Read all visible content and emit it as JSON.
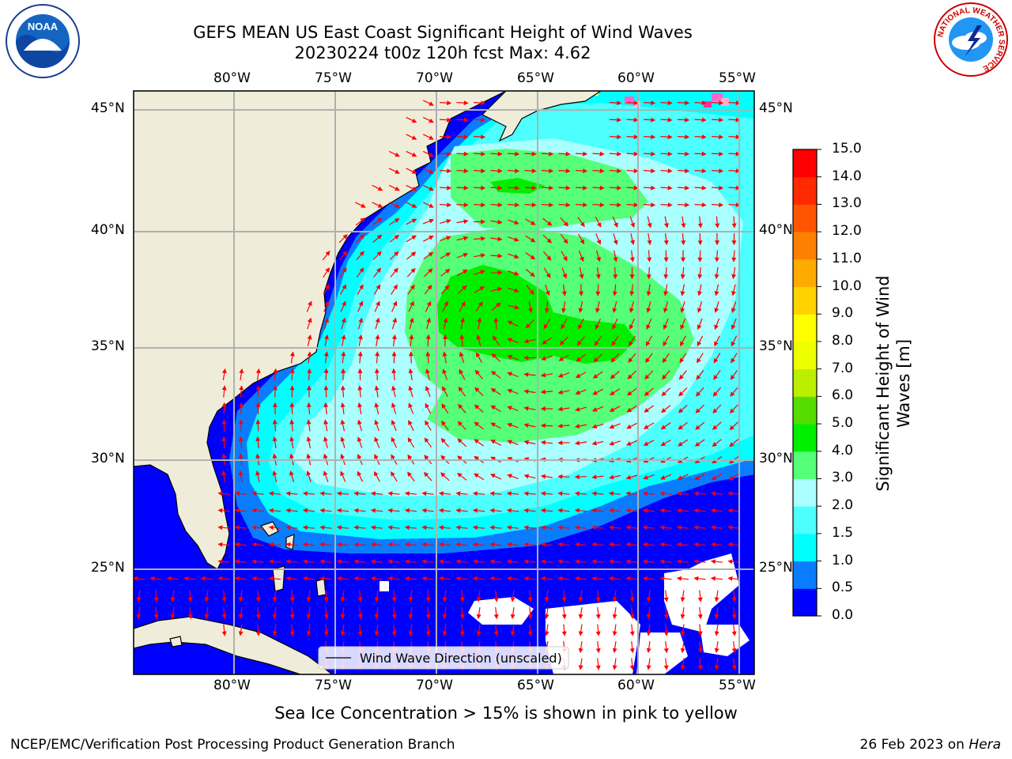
{
  "title": {
    "line1": "GEFS MEAN US East Coast Significant Height of Wind Waves",
    "line2": "20230224 t00z 120h fcst   Max: 4.62"
  },
  "map": {
    "lon_labels": [
      "80°W",
      "75°W",
      "70°W",
      "65°W",
      "60°W",
      "55°W"
    ],
    "lat_labels": [
      "45°N",
      "40°N",
      "35°N",
      "30°N",
      "25°N"
    ],
    "legend_label": "Wind Wave Direction (unscaled)",
    "arrow_color": "#ff0000",
    "land_color": "#efedd9"
  },
  "colorbar": {
    "title_line1": "Significant Height of Wind",
    "title_line2": "Waves [m]",
    "ticks": [
      "0.0",
      "0.5",
      "1.0",
      "1.5",
      "2.0",
      "3.0",
      "4.0",
      "5.0",
      "6.0",
      "7.0",
      "8.0",
      "9.0",
      "10.0",
      "11.0",
      "12.0",
      "13.0",
      "14.0",
      "15.0"
    ],
    "colors": [
      "#0000ff",
      "#0a7dff",
      "#00ffff",
      "#4dffff",
      "#aaffff",
      "#55ff77",
      "#00ee00",
      "#55dd00",
      "#bbee00",
      "#eeff00",
      "#ffff00",
      "#ffd200",
      "#ffaa00",
      "#ff8000",
      "#ff5500",
      "#ff2a00",
      "#ff0000"
    ]
  },
  "caption": "Sea Ice Concentration > 15% is shown in pink to yellow",
  "footer": {
    "left": "NCEP/EMC/Verification Post Processing Product Generation Branch",
    "right_date": "26 Feb 2023 on ",
    "right_machine": "Hera"
  },
  "logos": {
    "noaa": "NOAA",
    "nws_text": "NATIONAL WEATHER SERVICE"
  }
}
